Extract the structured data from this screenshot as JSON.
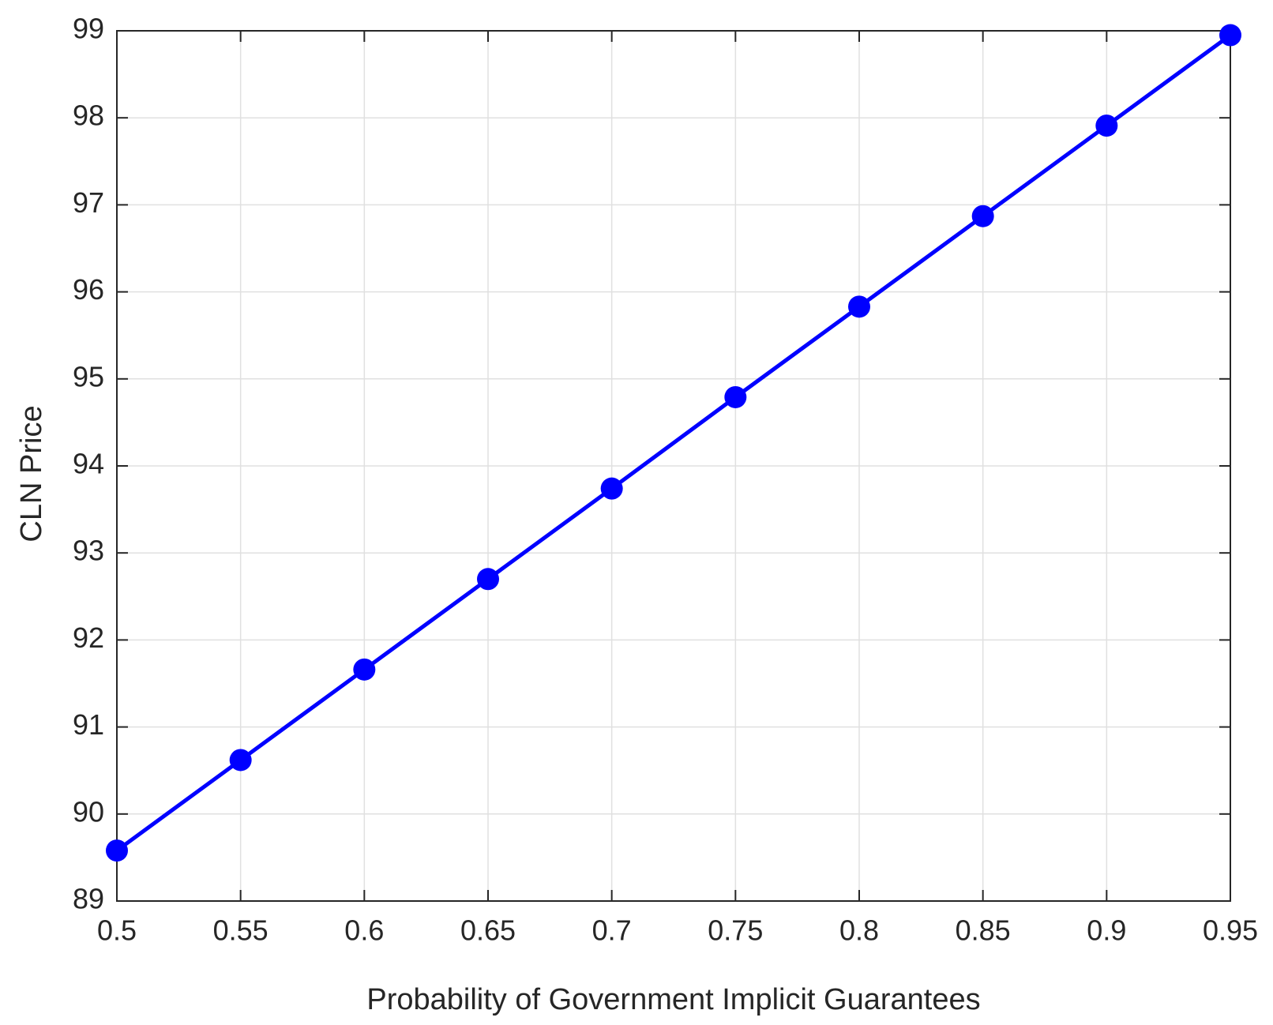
{
  "chart_data": {
    "type": "line",
    "xlabel": "Probability of Government Implicit Guarantees",
    "ylabel": "CLN Price",
    "x": [
      0.5,
      0.55,
      0.6,
      0.65,
      0.7,
      0.75,
      0.8,
      0.85,
      0.9,
      0.95
    ],
    "series": [
      {
        "color": "#0000ff",
        "values": [
          89.58,
          90.62,
          91.66,
          92.7,
          93.74,
          94.79,
          95.83,
          96.87,
          97.91,
          98.95
        ]
      }
    ],
    "xlim": [
      0.5,
      0.95
    ],
    "xticks": [
      0.5,
      0.55,
      0.6,
      0.65,
      0.7,
      0.75,
      0.8,
      0.85,
      0.9,
      0.95
    ],
    "ylim": [
      89,
      99
    ],
    "yticks": [
      89,
      90,
      91,
      92,
      93,
      94,
      95,
      96,
      97,
      98,
      99
    ],
    "grid": true,
    "markers": true
  }
}
